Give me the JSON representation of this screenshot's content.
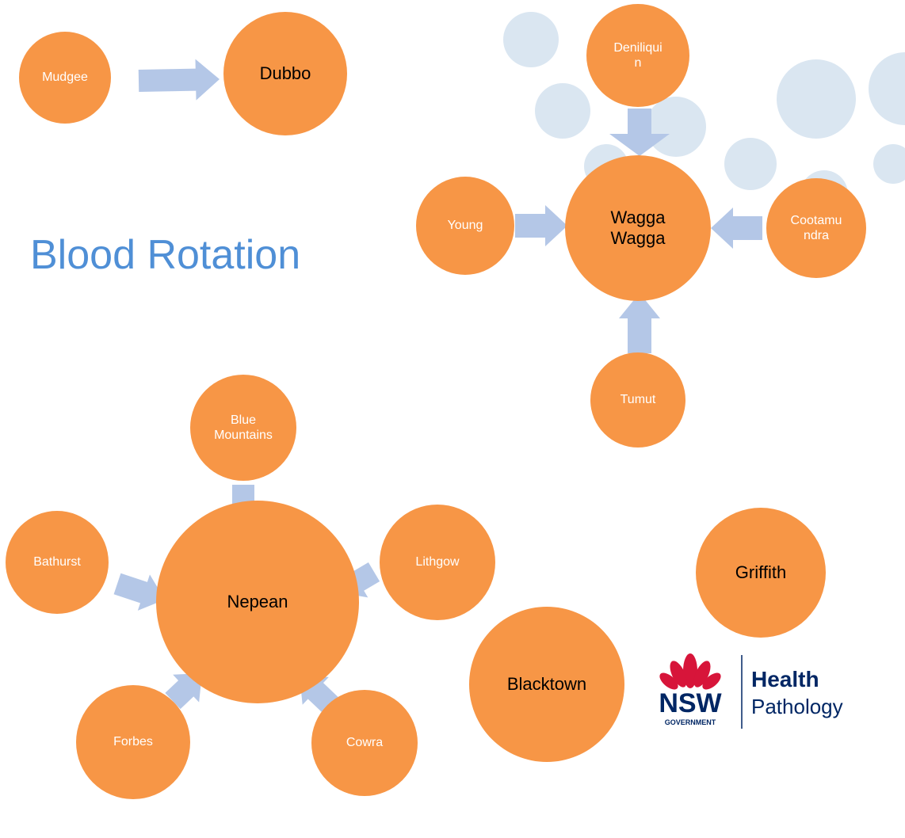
{
  "title": "Blood Rotation",
  "nodes": [
    {
      "lines": [
        "Mudgee"
      ]
    },
    {
      "lines": [
        "Dubbo"
      ]
    },
    {
      "lines": [
        "Deniliqui",
        "n"
      ]
    },
    {
      "lines": [
        "Wagga",
        "Wagga"
      ]
    },
    {
      "lines": [
        "Young"
      ]
    },
    {
      "lines": [
        "Cootamu",
        "ndra"
      ]
    },
    {
      "lines": [
        "Tumut"
      ]
    },
    {
      "lines": [
        "Blue",
        "Mountains"
      ]
    },
    {
      "lines": [
        "Nepean"
      ]
    },
    {
      "lines": [
        "Bathurst"
      ]
    },
    {
      "lines": [
        "Lithgow"
      ]
    },
    {
      "lines": [
        "Forbes"
      ]
    },
    {
      "lines": [
        "Cowra"
      ]
    },
    {
      "lines": [
        "Griffith"
      ]
    },
    {
      "lines": [
        "Blacktown"
      ]
    }
  ],
  "logo": {
    "mark": "NSW",
    "sub": "GOVERNMENT",
    "line1": "Health",
    "line2": "Pathology"
  }
}
